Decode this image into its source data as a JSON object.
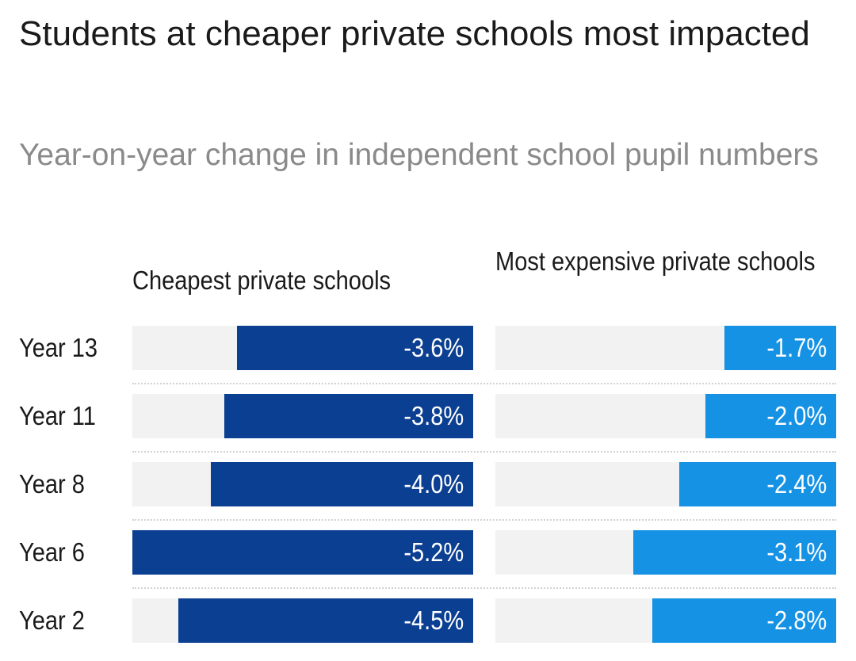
{
  "title": "Students at cheaper private schools most impacted",
  "subtitle": "Year-on-year change in independent school pupil numbers",
  "chart_data": {
    "type": "bar",
    "orientation": "horizontal",
    "categories": [
      "Year 13",
      "Year 11",
      "Year 8",
      "Year 6",
      "Year 2"
    ],
    "series": [
      {
        "name": "Cheapest private schools",
        "values": [
          -3.6,
          -3.8,
          -4.0,
          -5.2,
          -4.5
        ],
        "labels": [
          "-3.6%",
          "-3.8%",
          "-4.0%",
          "-5.2%",
          "-4.5%"
        ],
        "color": "#0b3f91",
        "scale_max": 5.2
      },
      {
        "name": "Most expensive private schools",
        "values": [
          -1.7,
          -2.0,
          -2.4,
          -3.1,
          -2.8
        ],
        "labels": [
          "-1.7%",
          "-2.0%",
          "-2.4%",
          "-3.1%",
          "-2.8%"
        ],
        "color": "#1692e5",
        "scale_max": 5.2
      }
    ],
    "value_format": "percent",
    "grid": false,
    "legend": "none"
  },
  "colors": {
    "track": "#f2f2f2",
    "cheapest": "#0b3f91",
    "expensive": "#1692e5"
  }
}
